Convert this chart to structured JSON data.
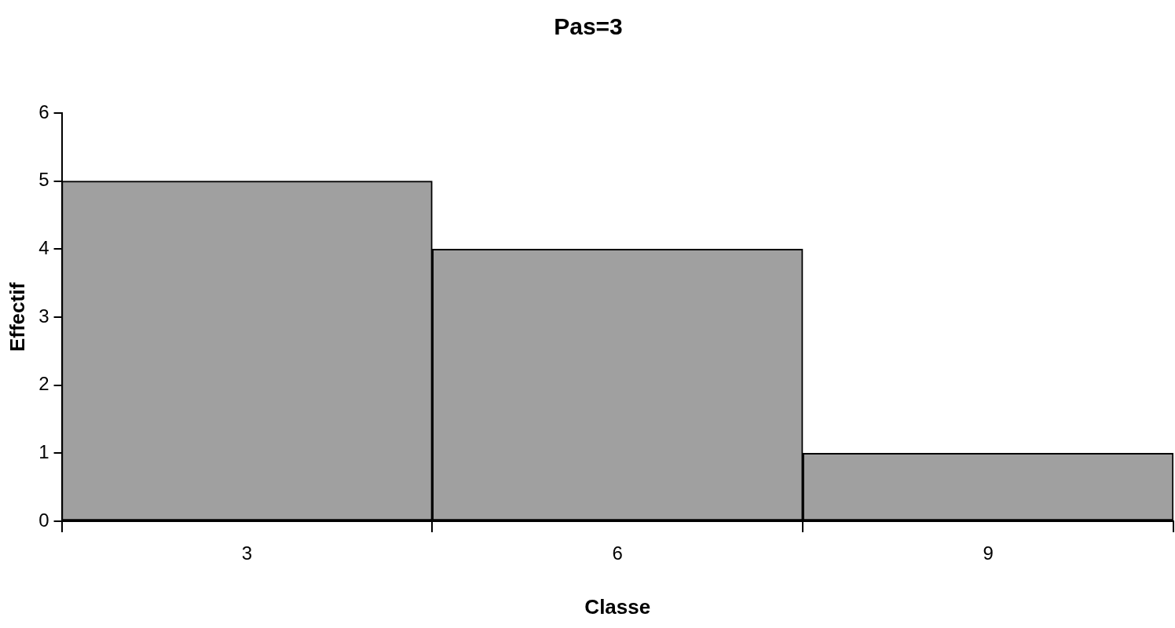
{
  "chart_data": {
    "type": "bar",
    "title": "Pas=3",
    "xlabel": "Classe",
    "ylabel": "Effectif",
    "categories": [
      "3",
      "6",
      "9"
    ],
    "values": [
      5,
      4,
      1
    ],
    "color": "#a0a0a0",
    "ylim": [
      0,
      6
    ],
    "yticks": [
      0,
      1,
      2,
      3,
      4,
      5,
      6
    ],
    "grid": false,
    "legend": false
  }
}
